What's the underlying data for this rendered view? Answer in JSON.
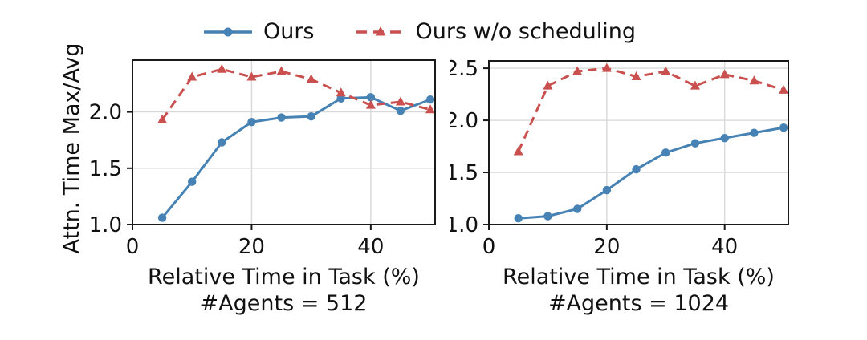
{
  "shared": {
    "ylabel": "Attn. Time Max/Avg"
  },
  "legend": {
    "items": [
      {
        "label": "Ours",
        "color": "#4682B4",
        "marker": "circle",
        "line": "solid"
      },
      {
        "label": "Ours w/o scheduling",
        "color": "#C9504E",
        "marker": "triangle",
        "line": "dashed"
      }
    ]
  },
  "colors": {
    "grid": "#d9d9d9",
    "spine": "#1a1a1a",
    "text": "#111111",
    "background": "#ffffff"
  },
  "chart_data": [
    {
      "type": "line",
      "xlabel": "Relative Time in Task (%)",
      "subtitle": "#Agents = 512",
      "ylabel": "Attn. Time Max/Avg",
      "x": [
        5,
        10,
        15,
        20,
        25,
        30,
        35,
        40,
        45,
        50
      ],
      "series": [
        {
          "name": "Ours",
          "values": [
            1.06,
            1.38,
            1.73,
            1.91,
            1.95,
            1.96,
            2.12,
            2.13,
            2.01,
            2.11
          ]
        },
        {
          "name": "Ours w/o scheduling",
          "values": [
            1.93,
            2.31,
            2.38,
            2.31,
            2.36,
            2.29,
            2.17,
            2.06,
            2.09,
            2.02
          ]
        }
      ],
      "xlim": [
        0,
        50.8
      ],
      "ylim": [
        1.0,
        2.46
      ],
      "xticks": [
        0,
        20,
        40
      ],
      "xtick_labels": [
        "0",
        "20",
        "40"
      ],
      "yticks": [
        1.0,
        1.5,
        2.0
      ],
      "ytick_labels": [
        "1.0",
        "1.5",
        "2.0"
      ],
      "grid": true,
      "legend_position": "top-center-outside"
    },
    {
      "type": "line",
      "xlabel": "Relative Time in Task (%)",
      "subtitle": "#Agents = 1024",
      "ylabel": "Attn. Time Max/Avg",
      "x": [
        5,
        10,
        15,
        20,
        25,
        30,
        35,
        40,
        45,
        50
      ],
      "series": [
        {
          "name": "Ours",
          "values": [
            1.06,
            1.08,
            1.15,
            1.33,
            1.53,
            1.69,
            1.78,
            1.83,
            1.88,
            1.93
          ]
        },
        {
          "name": "Ours w/o scheduling",
          "values": [
            1.7,
            2.33,
            2.47,
            2.5,
            2.42,
            2.47,
            2.33,
            2.44,
            2.38,
            2.29
          ]
        }
      ],
      "xlim": [
        0,
        50.8
      ],
      "ylim": [
        1.0,
        2.57
      ],
      "xticks": [
        0,
        20,
        40
      ],
      "xtick_labels": [
        "0",
        "20",
        "40"
      ],
      "yticks": [
        1.0,
        1.5,
        2.0,
        2.5
      ],
      "ytick_labels": [
        "1.0",
        "1.5",
        "2.0",
        "2.5"
      ],
      "grid": true,
      "legend_position": "top-center-outside"
    }
  ]
}
